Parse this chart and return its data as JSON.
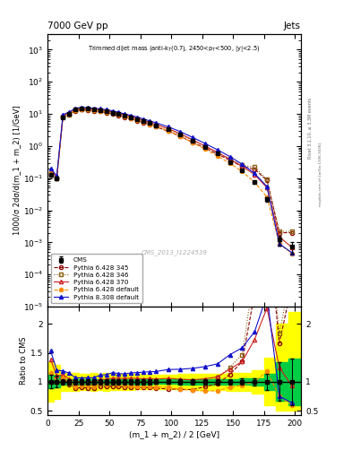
{
  "title_top": "7000 GeV pp",
  "title_right": "Jets",
  "panel_title": "Trimmed dijet mass (anti-k$_{T}$(0.7), 2450<p$_{T}$<500, |y|<2.5)",
  "watermark": "CMS_2013_I1224539",
  "right_label1": "Rivet 3.1.10, ≥ 3.3M events",
  "right_label2": "mcplots.cern.ch [arXiv:1306.3436]",
  "ylabel_main": "1000/σ 2dσ/d(m_1 + m_2) [1/GeV]",
  "ylabel_ratio": "Ratio to CMS",
  "xlabel": "(m_1 + m_2) / 2 [GeV]",
  "xlim": [
    0,
    205
  ],
  "ylim_main": [
    1e-05,
    3000.0
  ],
  "ylim_ratio": [
    0.42,
    2.3
  ],
  "x_data": [
    2.5,
    7.5,
    12.5,
    17.5,
    22.5,
    27.5,
    32.5,
    37.5,
    42.5,
    47.5,
    52.5,
    57.5,
    62.5,
    67.5,
    72.5,
    77.5,
    82.5,
    87.5,
    97.5,
    107.5,
    117.5,
    127.5,
    137.5,
    147.5,
    157.5,
    167.5,
    177.5,
    187.5,
    197.5
  ],
  "cms_y": [
    0.13,
    0.1,
    8.0,
    10.0,
    14.0,
    15.0,
    14.5,
    14.0,
    13.0,
    12.0,
    10.8,
    9.8,
    8.8,
    7.8,
    6.9,
    6.0,
    5.2,
    4.5,
    3.3,
    2.3,
    1.5,
    0.95,
    0.58,
    0.32,
    0.17,
    0.075,
    0.022,
    0.0012,
    0.00075
  ],
  "cms_yerr": [
    0.015,
    0.01,
    0.4,
    0.5,
    0.7,
    0.7,
    0.7,
    0.7,
    0.6,
    0.6,
    0.5,
    0.45,
    0.4,
    0.35,
    0.3,
    0.25,
    0.22,
    0.18,
    0.13,
    0.1,
    0.07,
    0.045,
    0.028,
    0.016,
    0.009,
    0.005,
    0.003,
    0.0004,
    0.0003
  ],
  "p345_y": [
    0.13,
    0.1,
    8.5,
    9.5,
    12.5,
    13.5,
    13.0,
    12.5,
    12.0,
    11.0,
    10.0,
    9.0,
    8.0,
    7.1,
    6.2,
    5.4,
    4.7,
    4.0,
    2.9,
    2.0,
    1.3,
    0.87,
    0.56,
    0.36,
    0.23,
    0.19,
    0.085,
    0.002,
    0.002
  ],
  "p346_y": [
    0.13,
    0.1,
    8.3,
    9.7,
    13.2,
    14.2,
    13.8,
    13.3,
    12.8,
    11.8,
    10.8,
    9.8,
    8.8,
    7.8,
    6.9,
    6.0,
    5.2,
    4.5,
    3.3,
    2.3,
    1.5,
    0.97,
    0.62,
    0.4,
    0.25,
    0.22,
    0.09,
    0.0022,
    0.0022
  ],
  "p370_y": [
    0.18,
    0.11,
    9.0,
    10.5,
    14.0,
    15.0,
    14.5,
    14.0,
    13.5,
    12.5,
    11.5,
    10.4,
    9.3,
    8.3,
    7.3,
    6.3,
    5.5,
    4.7,
    3.5,
    2.4,
    1.55,
    1.0,
    0.63,
    0.39,
    0.23,
    0.13,
    0.05,
    0.0015,
    0.0007
  ],
  "pdef_y": [
    0.15,
    0.1,
    8.5,
    10.0,
    13.0,
    14.0,
    13.5,
    13.0,
    12.5,
    11.5,
    10.4,
    9.3,
    8.3,
    7.3,
    6.4,
    5.5,
    4.8,
    4.1,
    3.0,
    2.0,
    1.28,
    0.8,
    0.49,
    0.29,
    0.16,
    0.075,
    0.026,
    0.0009,
    0.00045
  ],
  "p8_y": [
    0.2,
    0.12,
    9.5,
    11.5,
    15.0,
    16.0,
    15.5,
    15.0,
    14.5,
    13.5,
    12.5,
    11.2,
    10.0,
    9.0,
    8.0,
    7.0,
    6.1,
    5.3,
    4.0,
    2.8,
    1.85,
    1.2,
    0.76,
    0.47,
    0.27,
    0.14,
    0.055,
    0.0009,
    0.00048
  ],
  "color_cms": "#000000",
  "color_p345": "#8b0000",
  "color_p346": "#8b6010",
  "color_p370": "#cc2222",
  "color_pdef": "#ff8c00",
  "color_p8": "#1111cc",
  "color_green": "#00cc44",
  "color_yellow": "#ffff00",
  "bg_color": "#ffffff"
}
